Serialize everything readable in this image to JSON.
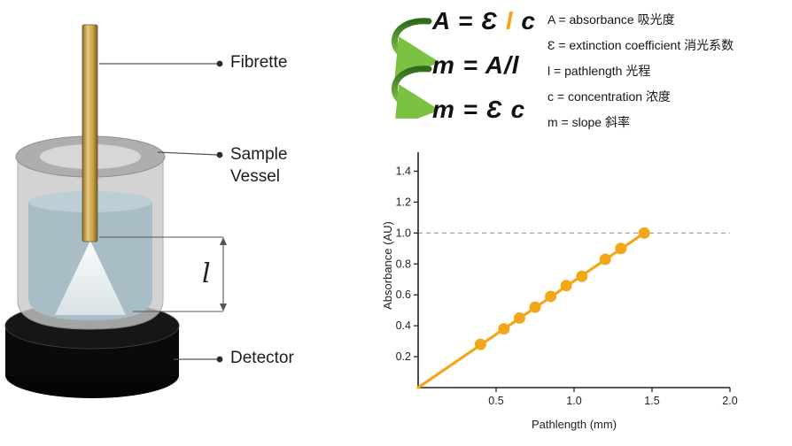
{
  "apparatus": {
    "fibrette_label": "Fibrette",
    "sample_vessel_label_line1": "Sample",
    "sample_vessel_label_line2": "Vessel",
    "detector_label": "Detector",
    "pathlength_symbol": "l"
  },
  "equations": {
    "eq1_prefix": "A = Ɛ ",
    "eq1_highlight": "l",
    "eq1_suffix": " c",
    "eq2": "m = A/l",
    "eq3": "m = Ɛ c"
  },
  "legend": {
    "items": [
      "A = absorbance 吸光度",
      "Ɛ = extinction coefficient 消光系数",
      "l = pathlength 光程",
      "c = concentration 浓度",
      "m = slope 斜率"
    ]
  },
  "colors": {
    "accent_orange": "#F2A71B",
    "arrow_green_dark": "#2F6B1D",
    "arrow_green_light": "#8FD14F",
    "reference_line_gray": "#9a9a9a"
  },
  "chart_data": {
    "type": "scatter",
    "title": "",
    "xlabel": "Pathlength (mm)",
    "ylabel": "Absorbance (AU)",
    "xlim": [
      0,
      2.0
    ],
    "ylim": [
      0,
      1.5
    ],
    "x_ticks": [
      0.5,
      1.0,
      1.5,
      2.0
    ],
    "y_ticks": [
      0.2,
      0.4,
      0.6,
      0.8,
      1.0,
      1.2,
      1.4
    ],
    "grid": false,
    "legend_position": "none",
    "reference_line_y": 1.0,
    "line": {
      "x": [
        0,
        1.45
      ],
      "y": [
        0,
        1.0
      ]
    },
    "points": {
      "x": [
        0.4,
        0.55,
        0.65,
        0.75,
        0.85,
        0.95,
        1.05,
        1.2,
        1.3,
        1.45
      ],
      "y": [
        0.28,
        0.38,
        0.45,
        0.52,
        0.59,
        0.66,
        0.72,
        0.83,
        0.9,
        1.0
      ]
    },
    "line_color": "#F2A71B",
    "point_color": "#F2A71B"
  }
}
